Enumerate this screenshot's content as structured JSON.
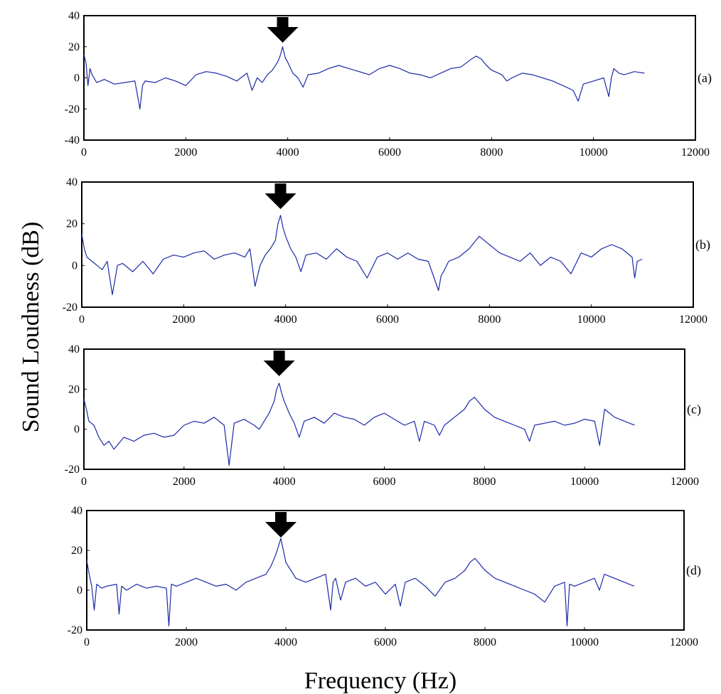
{
  "chart_data": [
    {
      "type": "line",
      "label": "(a)",
      "xlim": [
        0,
        12000
      ],
      "ylim": [
        -40,
        40
      ],
      "xticks": [
        0,
        2000,
        4000,
        6000,
        8000,
        10000,
        12000
      ],
      "yticks": [
        -40,
        -20,
        0,
        20,
        40
      ],
      "arrow_at": 3900,
      "series": [
        {
          "color": "#1b2aa8",
          "x": [
            0,
            40,
            80,
            120,
            160,
            250,
            400,
            600,
            800,
            1000,
            1100,
            1150,
            1200,
            1400,
            1600,
            1800,
            2000,
            2200,
            2400,
            2600,
            2800,
            3000,
            3200,
            3300,
            3400,
            3500,
            3600,
            3700,
            3800,
            3850,
            3900,
            3950,
            4000,
            4100,
            4200,
            4300,
            4400,
            4600,
            4800,
            5000,
            5200,
            5400,
            5600,
            5800,
            6000,
            6200,
            6400,
            6600,
            6800,
            7000,
            7200,
            7400,
            7600,
            7700,
            7800,
            7900,
            8000,
            8200,
            8300,
            8400,
            8600,
            8800,
            9000,
            9200,
            9400,
            9600,
            9700,
            9800,
            10000,
            10200,
            10300,
            10350,
            10400,
            10500,
            10600,
            10800,
            11000
          ],
          "y": [
            15,
            10,
            -5,
            6,
            2,
            -3,
            -1,
            -4,
            -3,
            -2,
            -20,
            -5,
            -2,
            -3,
            0,
            -2,
            -5,
            2,
            4,
            3,
            1,
            -2,
            3,
            -8,
            0,
            -3,
            2,
            5,
            10,
            14,
            20,
            13,
            10,
            3,
            0,
            -6,
            2,
            3,
            6,
            8,
            6,
            4,
            2,
            6,
            8,
            6,
            3,
            2,
            0,
            3,
            6,
            7,
            12,
            14,
            12,
            8,
            5,
            2,
            -2,
            0,
            3,
            2,
            0,
            -2,
            -5,
            -8,
            -15,
            -4,
            -2,
            0,
            -12,
            0,
            6,
            3,
            2,
            4,
            3
          ]
        }
      ]
    },
    {
      "type": "line",
      "label": "(b)",
      "xlim": [
        0,
        12000
      ],
      "ylim": [
        -20,
        40
      ],
      "xticks": [
        0,
        2000,
        4000,
        6000,
        8000,
        10000,
        12000
      ],
      "yticks": [
        -20,
        0,
        20,
        40
      ],
      "arrow_at": 3900,
      "series": [
        {
          "color": "#1b2aa8",
          "x": [
            0,
            50,
            100,
            200,
            300,
            400,
            500,
            600,
            700,
            800,
            1000,
            1200,
            1400,
            1600,
            1800,
            2000,
            2200,
            2400,
            2600,
            2800,
            3000,
            3200,
            3300,
            3400,
            3500,
            3600,
            3700,
            3800,
            3850,
            3900,
            3950,
            4000,
            4100,
            4200,
            4300,
            4400,
            4600,
            4800,
            5000,
            5200,
            5400,
            5600,
            5800,
            6000,
            6200,
            6400,
            6600,
            6800,
            7000,
            7050,
            7100,
            7200,
            7400,
            7600,
            7800,
            8000,
            8200,
            8400,
            8600,
            8800,
            9000,
            9200,
            9400,
            9600,
            9800,
            10000,
            10200,
            10400,
            10600,
            10800,
            10850,
            10900,
            11000
          ],
          "y": [
            15,
            8,
            4,
            2,
            0,
            -2,
            2,
            -14,
            0,
            1,
            -3,
            2,
            -4,
            3,
            5,
            4,
            6,
            7,
            3,
            5,
            6,
            4,
            8,
            -10,
            0,
            5,
            8,
            12,
            20,
            24,
            18,
            14,
            8,
            4,
            -3,
            5,
            6,
            3,
            8,
            4,
            2,
            -6,
            4,
            6,
            3,
            6,
            3,
            2,
            -12,
            -5,
            -3,
            2,
            4,
            8,
            14,
            10,
            6,
            4,
            2,
            6,
            0,
            4,
            2,
            -4,
            6,
            4,
            8,
            10,
            8,
            4,
            -6,
            2,
            3
          ]
        }
      ]
    },
    {
      "type": "line",
      "label": "(c)",
      "xlim": [
        0,
        12000
      ],
      "ylim": [
        -20,
        40
      ],
      "xticks": [
        0,
        2000,
        4000,
        6000,
        8000,
        10000,
        12000
      ],
      "yticks": [
        -20,
        0,
        20,
        40
      ],
      "arrow_at": 3900,
      "series": [
        {
          "color": "#1b2aa8",
          "x": [
            0,
            50,
            100,
            200,
            300,
            400,
            500,
            600,
            800,
            1000,
            1200,
            1400,
            1600,
            1800,
            2000,
            2200,
            2400,
            2600,
            2800,
            2900,
            3000,
            3200,
            3400,
            3500,
            3600,
            3700,
            3800,
            3850,
            3900,
            3950,
            4000,
            4100,
            4200,
            4300,
            4400,
            4600,
            4800,
            5000,
            5200,
            5400,
            5600,
            5800,
            6000,
            6200,
            6400,
            6600,
            6700,
            6800,
            7000,
            7100,
            7200,
            7400,
            7600,
            7700,
            7800,
            8000,
            8200,
            8400,
            8600,
            8800,
            8900,
            9000,
            9200,
            9400,
            9600,
            9800,
            10000,
            10200,
            10300,
            10400,
            10600,
            10800,
            11000
          ],
          "y": [
            15,
            10,
            4,
            2,
            -4,
            -8,
            -6,
            -10,
            -4,
            -6,
            -3,
            -2,
            -4,
            -3,
            2,
            4,
            3,
            6,
            2,
            -18,
            3,
            5,
            2,
            0,
            4,
            8,
            14,
            20,
            23,
            18,
            14,
            8,
            3,
            -4,
            4,
            6,
            3,
            8,
            6,
            5,
            2,
            6,
            8,
            5,
            2,
            4,
            -6,
            4,
            2,
            -3,
            2,
            6,
            10,
            14,
            16,
            10,
            6,
            4,
            2,
            0,
            -6,
            2,
            3,
            4,
            2,
            3,
            5,
            4,
            -8,
            10,
            6,
            4,
            2
          ]
        }
      ]
    },
    {
      "type": "line",
      "label": "(d)",
      "xlim": [
        0,
        12000
      ],
      "ylim": [
        -20,
        40
      ],
      "xticks": [
        0,
        2000,
        4000,
        6000,
        8000,
        10000,
        12000
      ],
      "yticks": [
        -20,
        0,
        20,
        40
      ],
      "arrow_at": 3900,
      "series": [
        {
          "color": "#1b2aa8",
          "x": [
            0,
            50,
            100,
            150,
            200,
            300,
            400,
            600,
            650,
            700,
            800,
            1000,
            1200,
            1400,
            1600,
            1650,
            1700,
            1800,
            2000,
            2200,
            2400,
            2600,
            2800,
            3000,
            3200,
            3400,
            3600,
            3700,
            3800,
            3850,
            3900,
            3950,
            4000,
            4100,
            4200,
            4400,
            4600,
            4800,
            4900,
            4950,
            5000,
            5100,
            5200,
            5400,
            5600,
            5800,
            6000,
            6200,
            6300,
            6400,
            6600,
            6800,
            7000,
            7200,
            7400,
            7600,
            7700,
            7800,
            8000,
            8200,
            8400,
            8600,
            8800,
            9000,
            9200,
            9400,
            9600,
            9650,
            9700,
            9800,
            10000,
            10200,
            10300,
            10400,
            10600,
            10800,
            11000
          ],
          "y": [
            15,
            8,
            2,
            -10,
            3,
            1,
            2,
            3,
            -12,
            2,
            0,
            3,
            1,
            2,
            1,
            -18,
            3,
            2,
            4,
            6,
            4,
            2,
            3,
            0,
            4,
            6,
            8,
            12,
            18,
            22,
            26,
            20,
            14,
            10,
            6,
            4,
            6,
            8,
            -10,
            4,
            6,
            -5,
            4,
            6,
            2,
            4,
            -2,
            3,
            -8,
            4,
            6,
            2,
            -3,
            4,
            6,
            10,
            14,
            16,
            10,
            6,
            4,
            2,
            0,
            -2,
            -6,
            2,
            4,
            -18,
            3,
            2,
            4,
            6,
            0,
            8,
            6,
            4,
            2
          ]
        }
      ]
    }
  ],
  "figure": {
    "xlabel": "Frequency (Hz)",
    "ylabel": "Sound Loudness (dB)"
  }
}
